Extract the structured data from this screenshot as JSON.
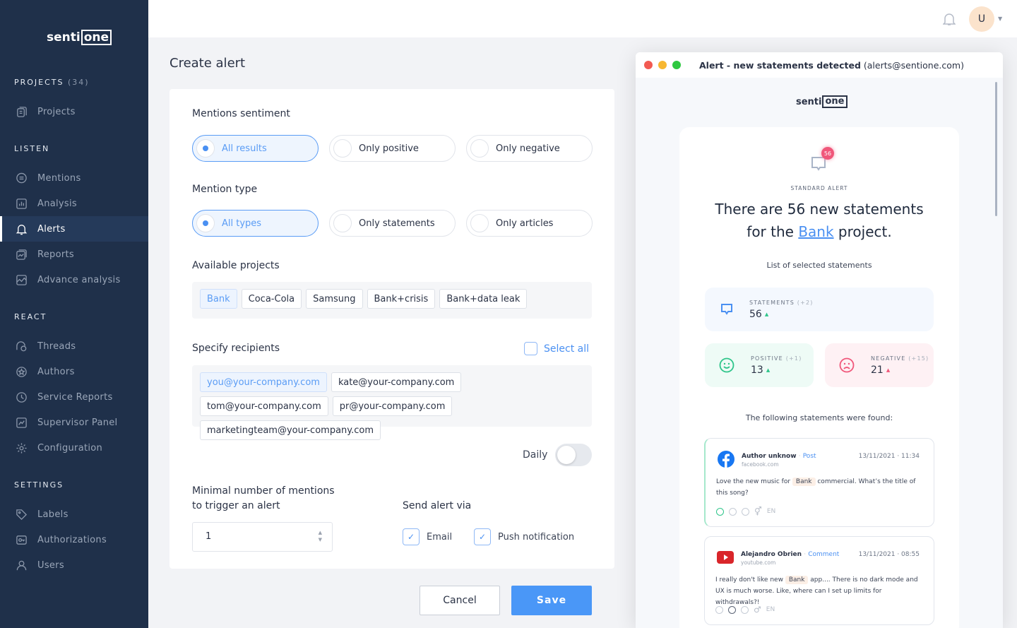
{
  "brand": {
    "name_left": "senti",
    "name_right": "one"
  },
  "sidebar": {
    "sections": [
      {
        "title": "PROJECTS",
        "count": "(34)",
        "items": [
          {
            "label": "Projects",
            "icon": "projects-icon"
          }
        ]
      },
      {
        "title": "LISTEN",
        "items": [
          {
            "label": "Mentions",
            "icon": "chat-icon"
          },
          {
            "label": "Analysis",
            "icon": "bar-chart-icon"
          },
          {
            "label": "Alerts",
            "icon": "bell-icon",
            "active": true
          },
          {
            "label": "Reports",
            "icon": "reports-icon"
          },
          {
            "label": "Advance analysis",
            "icon": "line-chart-icon"
          }
        ]
      },
      {
        "title": "REACT",
        "items": [
          {
            "label": "Threads",
            "icon": "threads-icon"
          },
          {
            "label": "Authors",
            "icon": "star-icon"
          },
          {
            "label": "Service Reports",
            "icon": "clock-icon"
          },
          {
            "label": "Supervisor Panel",
            "icon": "panel-icon"
          },
          {
            "label": "Configuration",
            "icon": "gear-icon"
          }
        ]
      },
      {
        "title": "SETTINGS",
        "items": [
          {
            "label": "Labels",
            "icon": "tag-icon"
          },
          {
            "label": "Authorizations",
            "icon": "key-icon"
          },
          {
            "label": "Users",
            "icon": "user-icon"
          }
        ]
      }
    ]
  },
  "topbar": {
    "avatar": "U"
  },
  "form": {
    "title": "Create alert",
    "sentiment_label": "Mentions sentiment",
    "sentiment_options": [
      "All results",
      "Only positive",
      "Only negative"
    ],
    "type_label": "Mention type",
    "type_options": [
      "All types",
      "Only statements",
      "Only articles"
    ],
    "projects_label": "Available projects",
    "projects": [
      "Bank",
      "Coca-Cola",
      "Samsung",
      "Bank+crisis",
      "Bank+data leak"
    ],
    "recipients_label": "Specify recipients",
    "select_all": "Select all",
    "recipients": [
      "you@your-company.com",
      "kate@your-company.com",
      "tom@your-company.com",
      "pr@your-company.com",
      "marketingteam@your-company.com"
    ],
    "frequency": "Daily",
    "frequency_toggle_on": false,
    "min_label_1": "Minimal number of mentions",
    "min_label_2": "to trigger an alert",
    "min_value": "1",
    "send_label": "Send alert via",
    "send_email": "Email",
    "send_push": "Push notification",
    "cancel": "Cancel",
    "save": "Save"
  },
  "mail": {
    "subject": "Alert - new statements detected",
    "from": "(alerts@sentione.com)",
    "badge": "56",
    "kind": "STANDARD ALERT",
    "headline_1": "There are 56 new statements",
    "headline_2a": "for the ",
    "headline_link": "Bank",
    "headline_2b": " project.",
    "list_title": "List of selected statements",
    "statements": {
      "label": "STATEMENTS",
      "delta": "(+2)",
      "value": "56"
    },
    "positive": {
      "label": "POSITIVE",
      "delta": "(+1)",
      "value": "13"
    },
    "negative": {
      "label": "NEGATIVE",
      "delta": "(+15)",
      "value": "21"
    },
    "found": "The following statements were found:",
    "posts": [
      {
        "author": "Author unknow",
        "kind": "Post",
        "source": "facebook.com",
        "date": "13/11/2021 · 11:34",
        "text_a": "Love the new music for ",
        "tag": "Bank",
        "text_b": " commercial. What’s the title of this song?",
        "lang": "EN"
      },
      {
        "author": "Alejandro Obrien",
        "kind": "Comment",
        "source": "youtube.com",
        "date": "13/11/2021 · 08:55",
        "text_a": "I really don't like new ",
        "tag": "Bank",
        "text_b": " app.... There is no dark mode and UX is much worse. Like, where can I set up limits for withdrawals?!",
        "lang": "EN"
      }
    ]
  },
  "colors": {
    "sidebar": "#1f304a",
    "accent": "#4a90f2",
    "positive": "#2ec58a",
    "negative": "#f0577a"
  }
}
